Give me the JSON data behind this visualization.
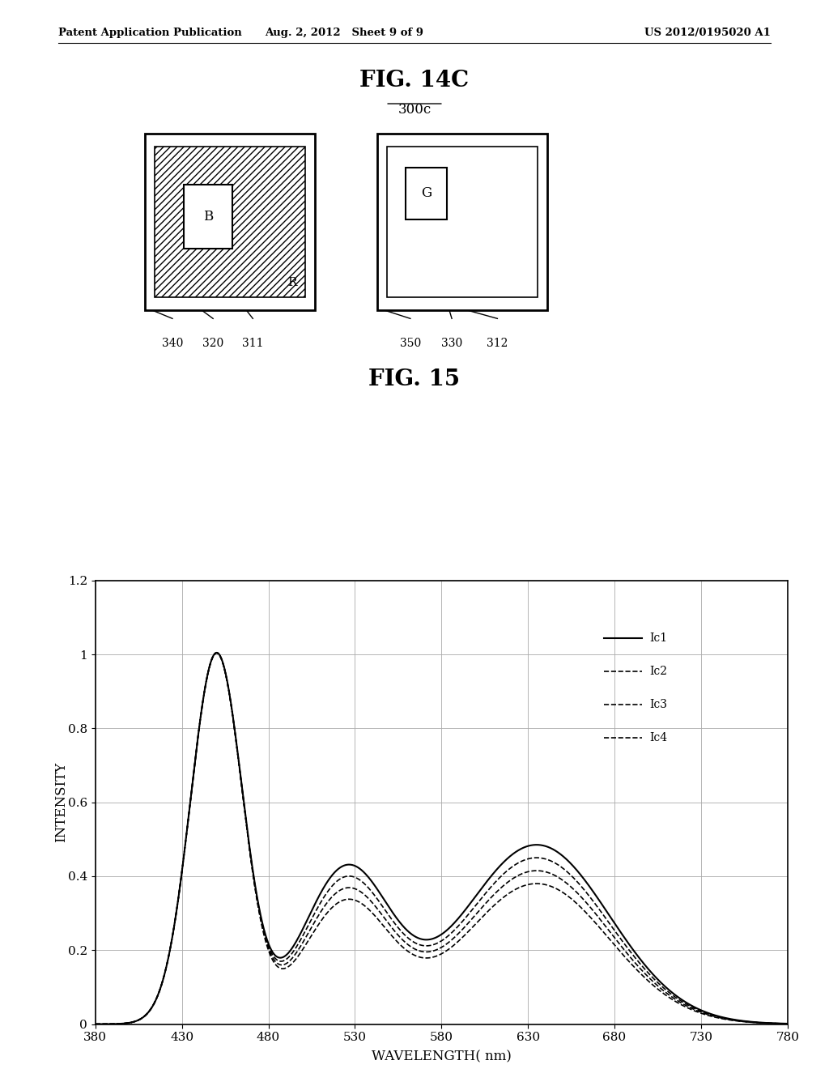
{
  "header_left": "Patent Application Publication",
  "header_center": "Aug. 2, 2012   Sheet 9 of 9",
  "header_right": "US 2012/0195020 A1",
  "fig14c_title": "FIG. 14C",
  "fig14c_subtitle": "300c",
  "fig15_title": "FIG. 15",
  "xlabel": "WAVELENGTH( nm)",
  "ylabel": "INTENSITY",
  "xlim": [
    380,
    780
  ],
  "ylim": [
    0,
    1.2
  ],
  "xticks": [
    380,
    430,
    480,
    530,
    580,
    630,
    680,
    730,
    780
  ],
  "yticks": [
    0,
    0.2,
    0.4,
    0.6,
    0.8,
    1.0,
    1.2
  ],
  "legend_labels": [
    "Ic1",
    "Ic2",
    "Ic3",
    "Ic4"
  ],
  "bg_color": "#ffffff",
  "line_color": "#000000",
  "grid_color": "#aaaaaa"
}
